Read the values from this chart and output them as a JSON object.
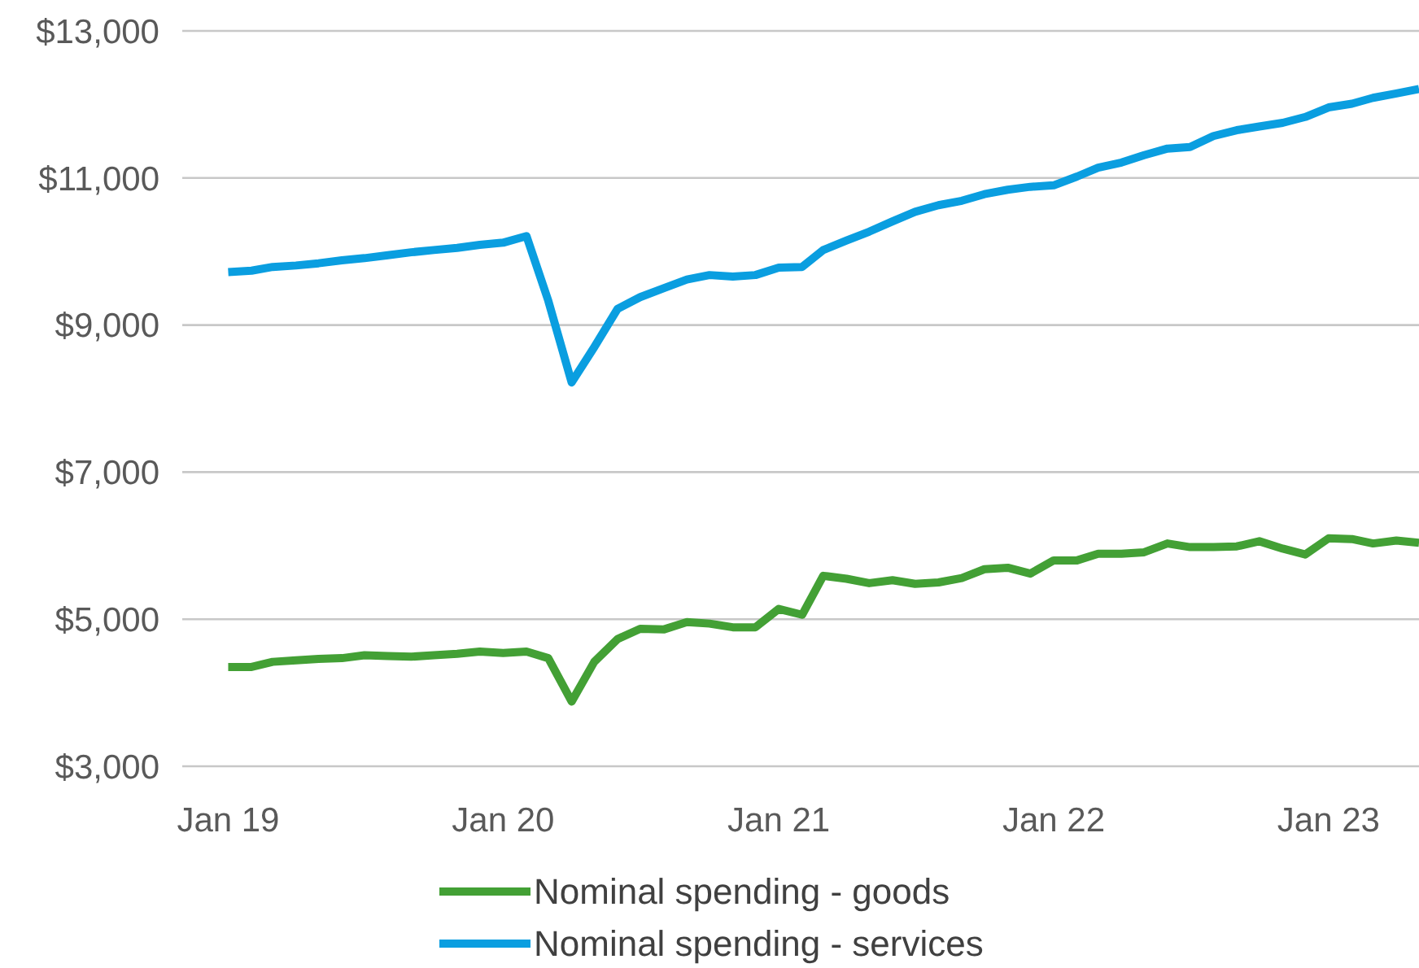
{
  "chart_data": {
    "type": "line",
    "x": [
      "2019-01",
      "2019-02",
      "2019-03",
      "2019-04",
      "2019-05",
      "2019-06",
      "2019-07",
      "2019-08",
      "2019-09",
      "2019-10",
      "2019-11",
      "2019-12",
      "2020-01",
      "2020-02",
      "2020-03",
      "2020-04",
      "2020-05",
      "2020-06",
      "2020-07",
      "2020-08",
      "2020-09",
      "2020-10",
      "2020-11",
      "2020-12",
      "2021-01",
      "2021-02",
      "2021-03",
      "2021-04",
      "2021-05",
      "2021-06",
      "2021-07",
      "2021-08",
      "2021-09",
      "2021-10",
      "2021-11",
      "2021-12",
      "2022-01",
      "2022-02",
      "2022-03",
      "2022-04",
      "2022-05",
      "2022-06",
      "2022-07",
      "2022-08",
      "2022-09",
      "2022-10",
      "2022-11",
      "2022-12",
      "2023-01",
      "2023-02",
      "2023-03",
      "2023-04",
      "2023-05"
    ],
    "series": [
      {
        "name": "Nominal spending - goods",
        "color": "#43a035",
        "values": [
          4350,
          4350,
          4420,
          4440,
          4460,
          4470,
          4510,
          4500,
          4490,
          4510,
          4530,
          4560,
          4540,
          4560,
          4470,
          3880,
          4420,
          4730,
          4870,
          4860,
          4960,
          4940,
          4890,
          4890,
          5140,
          5060,
          5590,
          5550,
          5490,
          5530,
          5480,
          5500,
          5560,
          5680,
          5700,
          5620,
          5800,
          5800,
          5890,
          5890,
          5910,
          6030,
          5980,
          5980,
          5990,
          6060,
          5960,
          5880,
          6100,
          6090,
          6030,
          6070,
          6040
        ]
      },
      {
        "name": "Nominal spending - services",
        "color": "#0a9ee0",
        "values": [
          9720,
          9740,
          9790,
          9810,
          9840,
          9880,
          9910,
          9950,
          9990,
          10020,
          10050,
          10090,
          10120,
          10210,
          9330,
          8220,
          8700,
          9220,
          9380,
          9500,
          9620,
          9680,
          9660,
          9680,
          9780,
          9790,
          10020,
          10150,
          10270,
          10410,
          10540,
          10630,
          10690,
          10780,
          10840,
          10880,
          10900,
          11020,
          11140,
          11210,
          11310,
          11400,
          11420,
          11570,
          11650,
          11700,
          11750,
          11830,
          11960,
          12010,
          12090,
          12150,
          12210
        ]
      }
    ],
    "xlim": [
      "2018-11",
      "2023-05"
    ],
    "xticks": [
      {
        "value": "2019-01",
        "label": "Jan 19"
      },
      {
        "value": "2020-01",
        "label": "Jan 20"
      },
      {
        "value": "2021-01",
        "label": "Jan 21"
      },
      {
        "value": "2022-01",
        "label": "Jan 22"
      },
      {
        "value": "2023-01",
        "label": "Jan 23"
      }
    ],
    "ylim": [
      3000,
      13000
    ],
    "yticks": [
      {
        "value": 3000,
        "label": "$3,000"
      },
      {
        "value": 5000,
        "label": "$5,000"
      },
      {
        "value": 7000,
        "label": "$7,000"
      },
      {
        "value": 9000,
        "label": "$9,000"
      },
      {
        "value": 11000,
        "label": "$11,000"
      },
      {
        "value": 13000,
        "label": "$13,000"
      }
    ],
    "grid": "y",
    "legend": "bottom",
    "marker": "none",
    "line_style": "solid"
  }
}
